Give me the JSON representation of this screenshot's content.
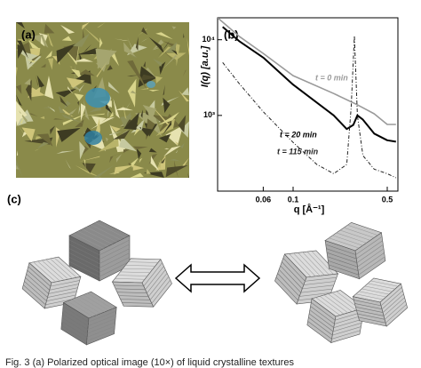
{
  "panels": {
    "a": "(a)",
    "b": "(b)",
    "c": "(c)"
  },
  "chart_data": {
    "type": "line",
    "xlabel": "q [Å⁻¹]",
    "ylabel": "I(q) [a.u.]",
    "xscale": "log",
    "yscale": "log",
    "xlim": [
      0.0275,
      0.6
    ],
    "ylim": [
      100,
      19500
    ],
    "xticks": [
      0.06,
      0.1,
      0.5
    ],
    "yticks": [
      {
        "value": 1000,
        "label": "10³"
      },
      {
        "value": 10000,
        "label": "10⁴"
      }
    ],
    "series": [
      {
        "name": "t = 0 min",
        "color": "#9a9a9a",
        "dash": "solid",
        "width": 1.6,
        "x": [
          0.0275,
          0.04,
          0.06,
          0.1,
          0.2,
          0.3,
          0.4,
          0.5,
          0.58
        ],
        "values": [
          19500,
          11000,
          6600,
          3350,
          1950,
          1380,
          1050,
          760,
          760
        ]
      },
      {
        "name": "t = 20 min",
        "color": "#000000",
        "dash": "solid",
        "width": 2,
        "x": [
          0.03,
          0.04,
          0.06,
          0.1,
          0.2,
          0.25,
          0.28,
          0.3,
          0.33,
          0.4,
          0.5,
          0.58
        ],
        "values": [
          14800,
          9500,
          5800,
          2550,
          1000,
          660,
          750,
          1000,
          880,
          575,
          470,
          450
        ]
      },
      {
        "name": "t = 115 min",
        "color": "#222222",
        "dash": "dashdot",
        "width": 1,
        "x": [
          0.03,
          0.04,
          0.06,
          0.1,
          0.15,
          0.2,
          0.25,
          0.27,
          0.285,
          0.3,
          0.33,
          0.4,
          0.5,
          0.58
        ],
        "values": [
          5000,
          2600,
          1120,
          440,
          225,
          170,
          225,
          1290,
          11300,
          1000,
          295,
          195,
          170,
          150
        ]
      }
    ]
  },
  "caption": "Fig. 3  (a) Polarized optical image (10×) of liquid crystalline textures"
}
